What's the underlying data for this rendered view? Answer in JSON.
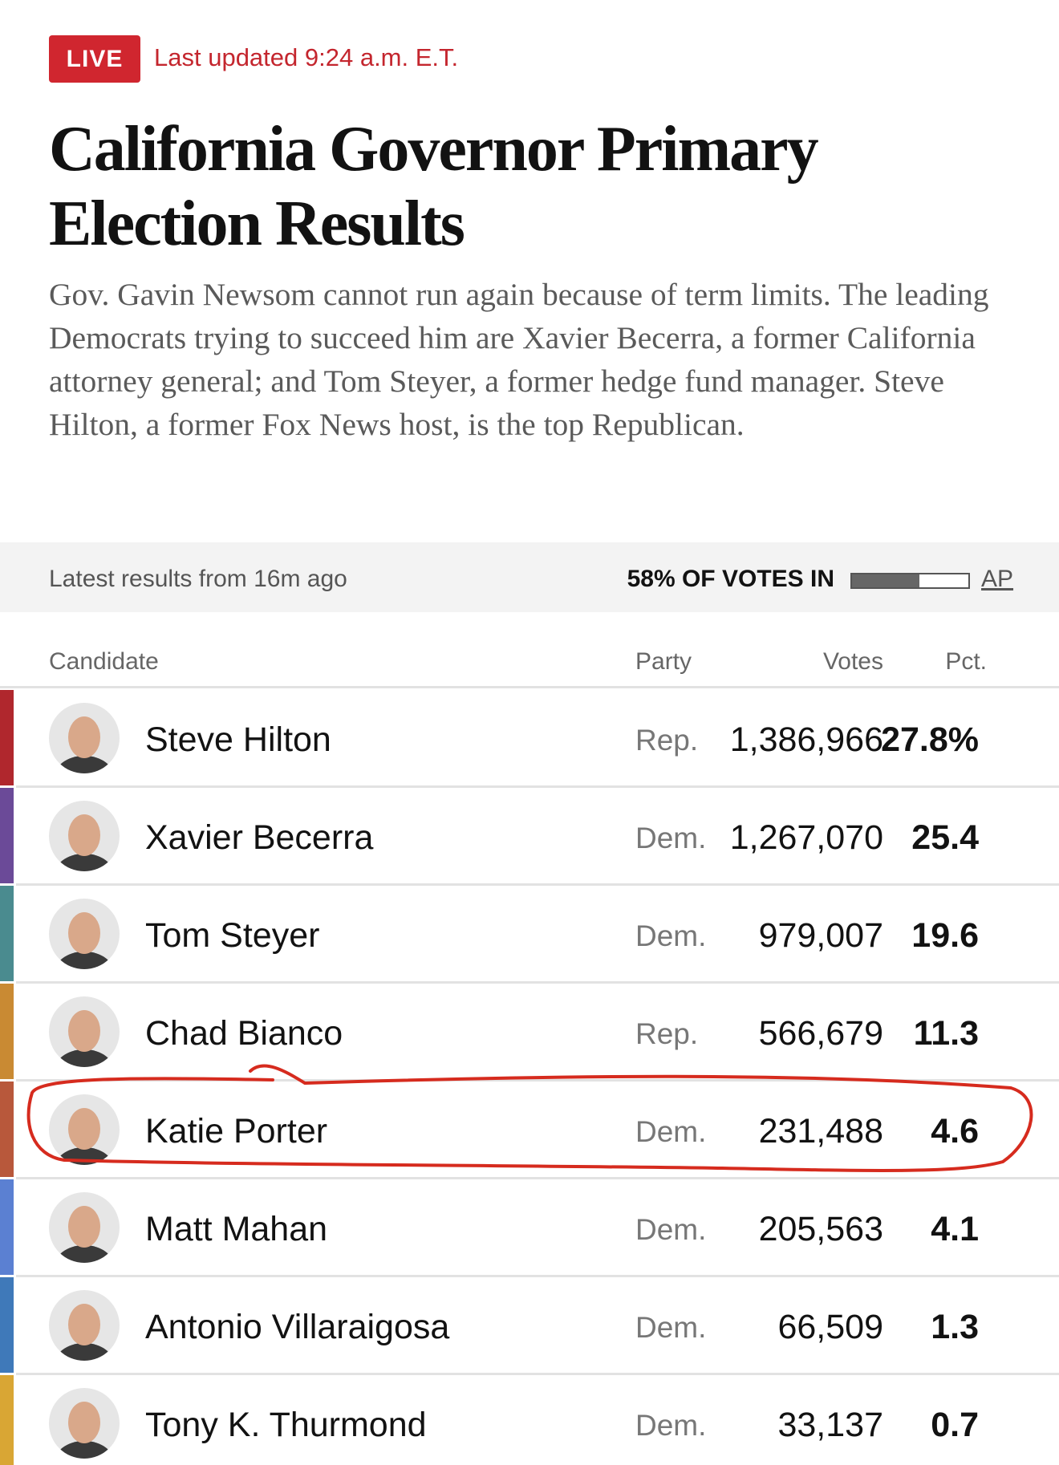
{
  "header": {
    "live": "LIVE",
    "updated": "Last updated 9:24 a.m. E.T.",
    "title": "California Governor Primary Election Results",
    "description": "Gov. Gavin Newsom cannot run again because of term limits. The leading Democrats trying to succeed him are Xavier Becerra, a former California attorney general; and Tom Steyer, a former hedge fund manager. Steve Hilton, a former Fox News host, is the top Republican."
  },
  "status": {
    "latest": "Latest results from 16m ago",
    "reporting": {
      "value": 58,
      "label": "58% OF VOTES IN"
    },
    "source": "AP"
  },
  "table": {
    "columns": [
      "Candidate",
      "Party",
      "Votes",
      "Pct."
    ],
    "rows": [
      {
        "name": "Steve Hilton",
        "party": "Rep.",
        "votes": "1,386,966",
        "pct": "27.8%",
        "color": "#b0272d"
      },
      {
        "name": "Xavier Becerra",
        "party": "Dem.",
        "votes": "1,267,070",
        "pct": "25.4",
        "color": "#6b4a98"
      },
      {
        "name": "Tom Steyer",
        "party": "Dem.",
        "votes": "979,007",
        "pct": "19.6",
        "color": "#4a8b8f"
      },
      {
        "name": "Chad Bianco",
        "party": "Rep.",
        "votes": "566,679",
        "pct": "11.3",
        "color": "#c98a33"
      },
      {
        "name": "Katie Porter",
        "party": "Dem.",
        "votes": "231,488",
        "pct": "4.6",
        "color": "#b8583b"
      },
      {
        "name": "Matt Mahan",
        "party": "Dem.",
        "votes": "205,563",
        "pct": "4.1",
        "color": "#5b80d2"
      },
      {
        "name": "Antonio Villaraigosa",
        "party": "Dem.",
        "votes": "66,509",
        "pct": "1.3",
        "color": "#3f79b9"
      },
      {
        "name": "Tony K. Thurmond",
        "party": "Dem.",
        "votes": "33,137",
        "pct": "0.7",
        "color": "#d9a634"
      }
    ]
  }
}
